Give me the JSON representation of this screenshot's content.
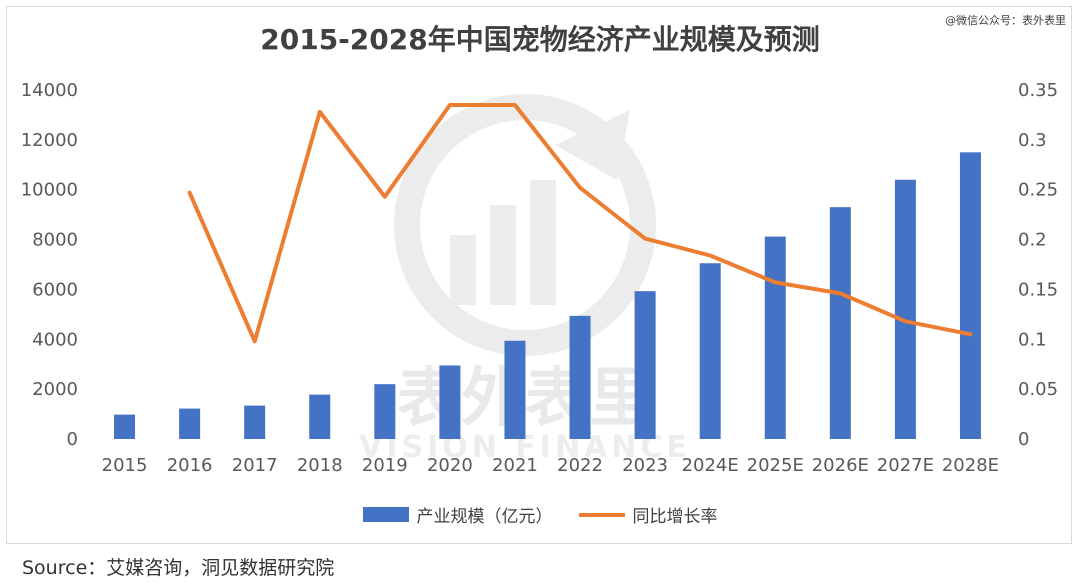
{
  "credit": "@微信公众号：表外表里",
  "source": "Source：艾媒咨询，洞见数据研究院",
  "watermark": {
    "cn": "表外表里",
    "en": "VISION FINANCE"
  },
  "colors": {
    "bar": "#4472C4",
    "line": "#ED7D31",
    "axis_text": "#595959"
  },
  "chart_data": {
    "type": "bar+line",
    "title": "2015-2028年中国宠物经济产业规模及预测",
    "categories": [
      "2015",
      "2016",
      "2017",
      "2018",
      "2019",
      "2020",
      "2021",
      "2022",
      "2023",
      "2024E",
      "2025E",
      "2026E",
      "2027E",
      "2028E"
    ],
    "series": [
      {
        "name": "产业规模（亿元）",
        "type": "bar",
        "axis": "left",
        "values": [
          978,
          1220,
          1340,
          1780,
          2200,
          2950,
          3940,
          4940,
          5930,
          7050,
          8120,
          9300,
          10400,
          11500
        ]
      },
      {
        "name": "同比增长率",
        "type": "line",
        "axis": "right",
        "values": [
          null,
          0.247,
          0.098,
          0.328,
          0.243,
          0.335,
          0.335,
          0.252,
          0.201,
          0.184,
          0.157,
          0.146,
          0.118,
          0.105
        ]
      }
    ],
    "y_left": {
      "min": 0,
      "max": 14000,
      "ticks": [
        "0",
        "2000",
        "4000",
        "6000",
        "8000",
        "10000",
        "12000",
        "14000"
      ]
    },
    "y_right": {
      "min": 0,
      "max": 0.35,
      "ticks": [
        "0",
        "0.05",
        "0.1",
        "0.15",
        "0.2",
        "0.25",
        "0.3",
        "0.35"
      ]
    },
    "grid": false,
    "legend_position": "bottom"
  }
}
